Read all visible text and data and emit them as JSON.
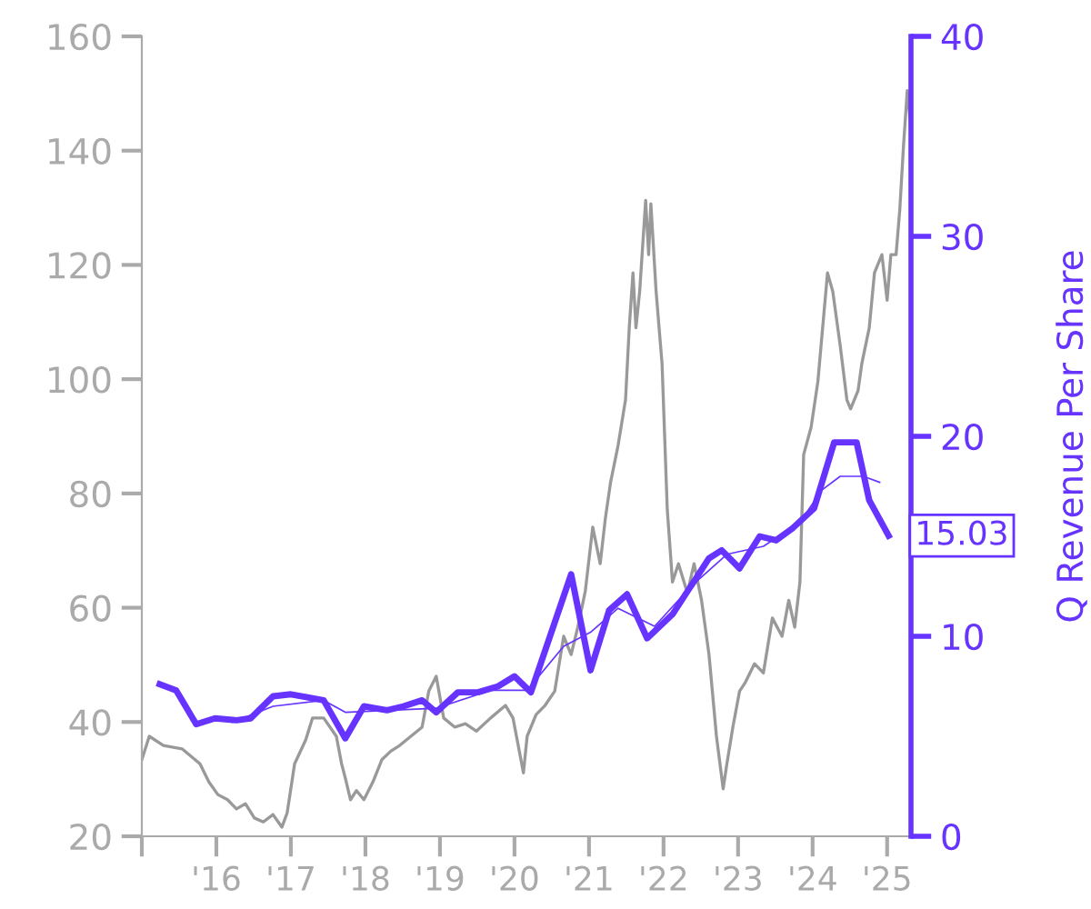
{
  "chart_data": {
    "type": "line",
    "y2label": "Q Revenue Per Share",
    "xlim": [
      2015,
      2025.32
    ],
    "xticks": [
      {
        "value": 2015,
        "label": null
      },
      {
        "value": 2016,
        "label": "'16"
      },
      {
        "value": 2017,
        "label": "'17"
      },
      {
        "value": 2018,
        "label": "'18"
      },
      {
        "value": 2019,
        "label": "'19"
      },
      {
        "value": 2020,
        "label": "'20"
      },
      {
        "value": 2021,
        "label": "'21"
      },
      {
        "value": 2022,
        "label": "'22"
      },
      {
        "value": 2023,
        "label": "'23"
      },
      {
        "value": 2024,
        "label": "'24"
      },
      {
        "value": 2025,
        "label": "'25"
      }
    ],
    "ylim": [
      20,
      160
    ],
    "yticks": [
      20,
      40,
      60,
      80,
      100,
      120,
      140,
      160
    ],
    "y2lim": [
      0,
      40
    ],
    "y2ticks": [
      0,
      10,
      20,
      30,
      40
    ],
    "grid": false,
    "legend": false,
    "marker": "none",
    "line_style": "solid",
    "series": [
      {
        "color": "#999999",
        "x": [
          2015.0,
          2015.1,
          2015.29,
          2015.54,
          2015.78,
          2015.9,
          2016.02,
          2016.15,
          2016.27,
          2016.39,
          2016.51,
          2016.63,
          2016.76,
          2016.88,
          2016.95,
          2017.05,
          2017.2,
          2017.29,
          2017.44,
          2017.61,
          2017.68,
          2017.73,
          2017.8,
          2017.88,
          2017.98,
          2018.1,
          2018.22,
          2018.34,
          2018.46,
          2018.61,
          2018.76,
          2018.85,
          2018.95,
          2019.05,
          2019.2,
          2019.34,
          2019.49,
          2019.68,
          2019.88,
          2019.98,
          2020.05,
          2020.12,
          2020.17,
          2020.29,
          2020.41,
          2020.54,
          2020.66,
          2020.76,
          2020.85,
          2020.95,
          2021.05,
          2021.15,
          2021.22,
          2021.29,
          2021.39,
          2021.49,
          2021.54,
          2021.59,
          2021.63,
          2021.68,
          2021.76,
          2021.8,
          2021.83,
          2021.9,
          2021.98,
          2022.05,
          2022.12,
          2022.2,
          2022.32,
          2022.41,
          2022.51,
          2022.61,
          2022.71,
          2022.8,
          2022.85,
          2022.93,
          2023.02,
          2023.1,
          2023.22,
          2023.34,
          2023.46,
          2023.59,
          2023.68,
          2023.76,
          2023.83,
          2023.88,
          2023.98,
          2024.07,
          2024.2,
          2024.27,
          2024.37,
          2024.46,
          2024.51,
          2024.61,
          2024.66,
          2024.76,
          2024.83,
          2024.93,
          2025.0,
          2025.05,
          2025.12,
          2025.17,
          2025.22,
          2025.27,
          2025.32
        ],
        "values": [
          33.4,
          37.5,
          35.9,
          35.3,
          32.7,
          29.5,
          27.3,
          26.4,
          24.8,
          25.7,
          23.2,
          22.5,
          23.8,
          21.6,
          24.1,
          32.7,
          36.9,
          40.7,
          40.7,
          37.5,
          32.7,
          30.2,
          26.4,
          28.0,
          26.4,
          29.5,
          33.4,
          34.9,
          35.9,
          37.5,
          39.1,
          45.4,
          48.0,
          40.7,
          39.1,
          39.7,
          38.4,
          40.7,
          42.9,
          40.7,
          35.9,
          31.1,
          37.5,
          41.3,
          42.9,
          45.4,
          55.0,
          51.8,
          56.6,
          62.9,
          74.1,
          67.7,
          75.7,
          82.0,
          88.4,
          96.4,
          109.0,
          118.6,
          109.0,
          115.4,
          131.3,
          121.8,
          130.7,
          115.4,
          102.7,
          77.2,
          64.5,
          67.7,
          62.6,
          67.7,
          61.3,
          51.8,
          37.5,
          28.3,
          32.7,
          39.1,
          45.4,
          47.0,
          50.2,
          48.6,
          58.2,
          55.0,
          61.3,
          56.6,
          64.5,
          86.8,
          91.6,
          99.5,
          118.6,
          115.4,
          105.9,
          96.4,
          94.8,
          98.0,
          102.7,
          109.0,
          118.6,
          121.8,
          113.8,
          121.8,
          121.8,
          129.7,
          140.9,
          150.5,
          144.1
        ]
      },
      {
        "color": "#6633ff",
        "axis": "y2",
        "x": [
          2015.24,
          2015.46,
          2015.73,
          2015.98,
          2016.27,
          2016.46,
          2016.76,
          2017.0,
          2017.44,
          2017.73,
          2017.98,
          2018.29,
          2018.51,
          2018.76,
          2018.95,
          2019.24,
          2019.51,
          2019.78,
          2020.0,
          2020.22,
          2020.76,
          2021.02,
          2021.27,
          2021.51,
          2021.78,
          2022.12,
          2022.61,
          2022.78,
          2023.02,
          2023.29,
          2023.51,
          2023.73,
          2024.02,
          2024.29,
          2024.59,
          2024.76,
          2025.02
        ],
        "values": [
          7.6,
          7.3,
          5.6,
          5.9,
          5.8,
          5.9,
          7.0,
          7.1,
          6.8,
          4.9,
          6.5,
          6.3,
          6.5,
          6.8,
          6.2,
          7.2,
          7.2,
          7.5,
          8.0,
          7.2,
          13.1,
          8.3,
          11.3,
          12.1,
          9.9,
          11.1,
          13.9,
          14.3,
          13.4,
          15.0,
          14.8,
          15.4,
          16.4,
          19.7,
          19.7,
          16.8,
          15.03
        ],
        "value_labels": [
          null,
          null,
          null,
          null,
          null,
          null,
          null,
          null,
          null,
          null,
          null,
          null,
          null,
          null,
          null,
          null,
          null,
          null,
          null,
          null,
          null,
          null,
          null,
          null,
          null,
          null,
          null,
          null,
          null,
          null,
          null,
          null,
          null,
          null,
          null,
          null,
          "15.03"
        ]
      },
      {
        "color": "#6633ff",
        "axis": "y2",
        "x": [
          2016.22,
          2016.76,
          2017.44,
          2017.73,
          2018.34,
          2018.95,
          2019.68,
          2020.17,
          2020.66,
          2021.02,
          2021.39,
          2021.88,
          2022.37,
          2022.85,
          2023.34,
          2023.83,
          2024.12,
          2024.37,
          2024.68,
          2024.9
        ],
        "values": [
          5.7,
          6.5,
          6.8,
          6.2,
          6.3,
          6.4,
          7.3,
          7.3,
          9.5,
          10.2,
          11.4,
          10.5,
          12.5,
          14.1,
          14.5,
          15.7,
          17.3,
          18.0,
          18.0,
          17.7
        ]
      }
    ]
  }
}
